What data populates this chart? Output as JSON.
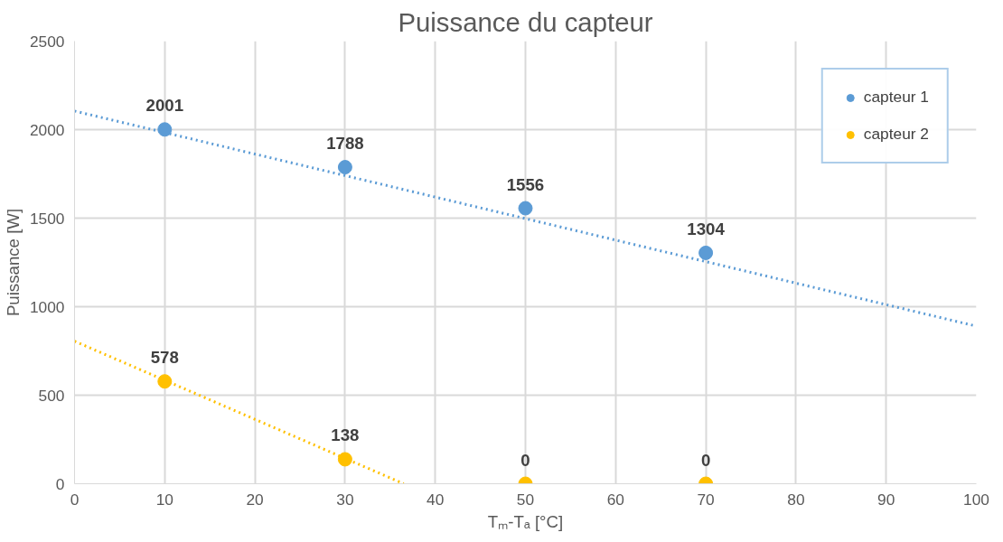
{
  "chart_data": {
    "type": "scatter",
    "title": "Puissance du capteur",
    "xlabel": "Tₘ-Tₐ [°C]",
    "ylabel": "Puissance [W]",
    "x": [
      10,
      30,
      50,
      70
    ],
    "series": [
      {
        "name": "capteur 1",
        "color": "#5b9bd5",
        "values": [
          2001,
          1788,
          1556,
          1304
        ],
        "value_labels": [
          "2001",
          "1788",
          "1556",
          "1304"
        ]
      },
      {
        "name": "capteur 2",
        "color": "#ffc000",
        "values": [
          578,
          138,
          0,
          0
        ],
        "value_labels": [
          "578",
          "138",
          "0",
          "0"
        ]
      },
      {
        "type": "line",
        "color": "#5b9bd5",
        "line_style": "dotted",
        "marker": "none",
        "x": [
          0,
          100
        ],
        "values": [
          2105,
          890
        ]
      },
      {
        "type": "line",
        "color": "#ffc000",
        "line_style": "dotted",
        "marker": "none",
        "x": [
          0,
          36.5
        ],
        "values": [
          805,
          0
        ]
      }
    ],
    "xlim": [
      0,
      100
    ],
    "xticks": [
      0,
      10,
      20,
      30,
      40,
      50,
      60,
      70,
      80,
      90,
      100
    ],
    "ylim": [
      0,
      2500
    ],
    "yticks": [
      0,
      500,
      1000,
      1500,
      2000,
      2500
    ],
    "grid": true,
    "legend": "top right",
    "marker": "circle"
  }
}
